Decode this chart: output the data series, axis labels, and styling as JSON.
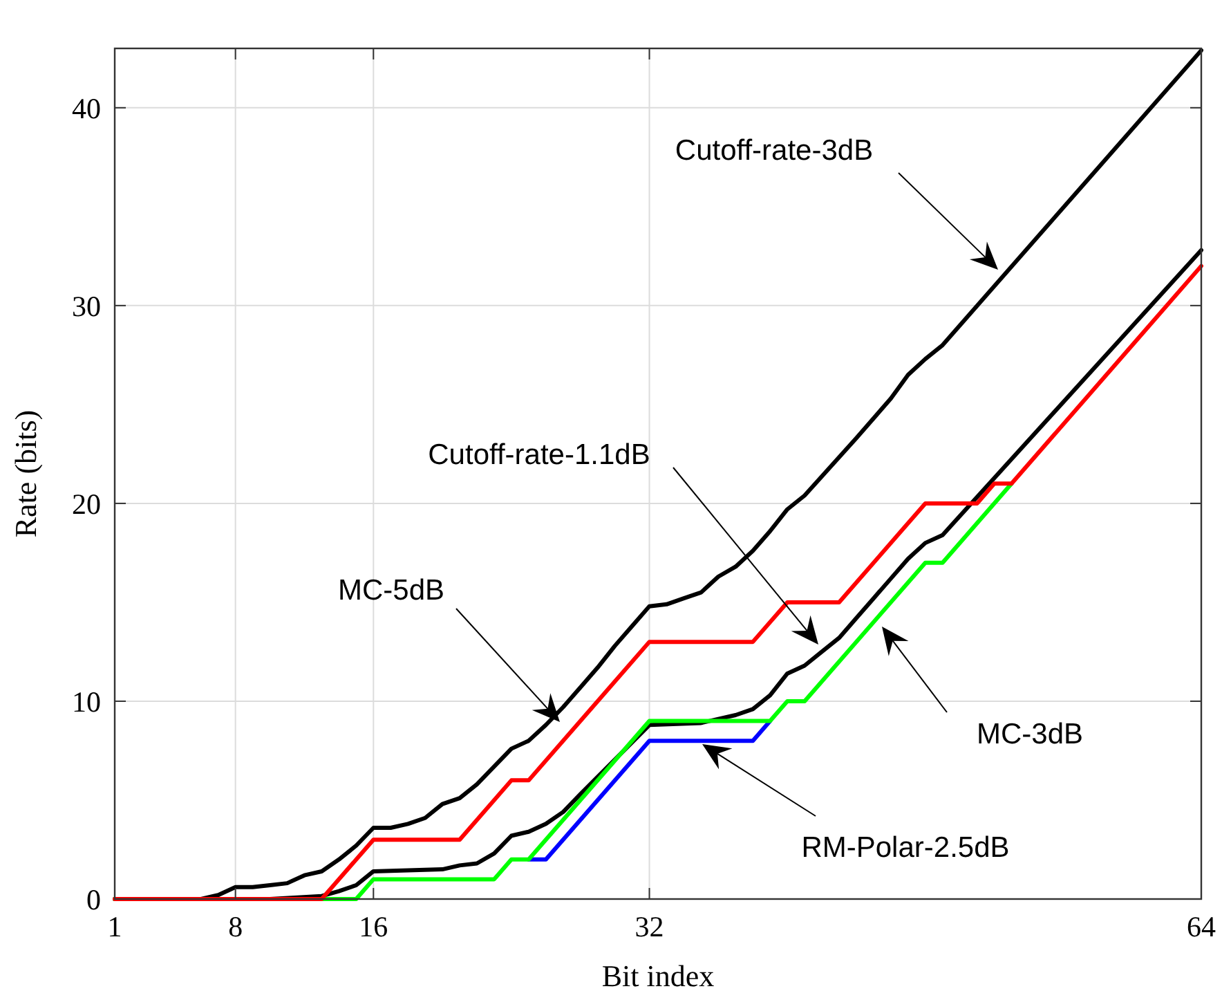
{
  "chart_data": {
    "type": "line",
    "xlabel": "Bit index",
    "ylabel": "Rate (bits)",
    "xlim": [
      1,
      64
    ],
    "ylim": [
      0,
      43
    ],
    "xticks": [
      1,
      8,
      16,
      32,
      64
    ],
    "yticks": [
      0,
      10,
      20,
      30,
      40
    ],
    "grid": true,
    "marker": "none",
    "line_style": "solid",
    "series": [
      {
        "color": "#000000",
        "x": [
          1,
          6,
          7,
          8,
          9,
          10,
          11,
          12,
          13,
          14,
          15,
          16,
          17,
          18,
          19,
          20,
          21,
          22,
          23,
          24,
          25,
          26,
          27,
          28,
          29,
          30,
          31,
          32,
          33,
          34,
          35,
          36,
          37,
          38,
          39,
          40,
          41,
          44,
          46,
          47,
          48,
          49,
          64
        ],
        "values": [
          0,
          0,
          0.2,
          0.6,
          0.6,
          0.7,
          0.8,
          1.2,
          1.4,
          2.0,
          2.7,
          3.6,
          3.6,
          3.8,
          4.1,
          4.8,
          5.1,
          5.8,
          6.7,
          7.6,
          8.0,
          8.8,
          9.7,
          10.7,
          11.7,
          12.8,
          13.8,
          14.8,
          14.9,
          15.2,
          15.5,
          16.3,
          16.8,
          17.6,
          18.6,
          19.7,
          20.4,
          23.3,
          25.3,
          26.5,
          27.3,
          28.0,
          42.9
        ]
      },
      {
        "color": "#000000",
        "x": [
          1,
          10,
          13,
          14,
          15,
          16,
          20,
          21,
          22,
          23,
          24,
          25,
          26,
          27,
          28,
          32,
          35,
          36,
          37,
          38,
          39,
          40,
          41,
          42,
          43,
          44,
          45,
          46,
          47,
          48,
          49,
          64
        ],
        "values": [
          0,
          0,
          0.15,
          0.4,
          0.7,
          1.4,
          1.5,
          1.7,
          1.8,
          2.3,
          3.2,
          3.4,
          3.8,
          4.4,
          5.3,
          8.8,
          8.9,
          9.1,
          9.3,
          9.6,
          10.3,
          11.4,
          11.8,
          12.5,
          13.2,
          14.2,
          15.2,
          16.2,
          17.2,
          18.0,
          18.4,
          32.8
        ]
      },
      {
        "color": "#0000ff",
        "x": [
          25,
          26,
          32,
          38,
          39
        ],
        "values": [
          2,
          2,
          8,
          8,
          9
        ]
      },
      {
        "color": "#00ff00",
        "x": [
          1,
          15,
          16,
          23,
          24,
          25,
          32,
          39,
          40,
          41,
          48,
          49,
          53
        ],
        "values": [
          0,
          0,
          1,
          1,
          2,
          2,
          9,
          9,
          10,
          10,
          17,
          17,
          21
        ]
      },
      {
        "color": "#ff0000",
        "x": [
          1,
          13,
          16,
          21,
          24,
          25,
          32,
          38,
          40,
          43,
          48,
          51,
          52,
          53,
          64
        ],
        "values": [
          0,
          0,
          3,
          3,
          6,
          6,
          13,
          13,
          15,
          15,
          20,
          20,
          21,
          21,
          32
        ]
      }
    ],
    "annotations": [
      "Cutoff-rate-3dB",
      "Cutoff-rate-1.1dB",
      "MC-5dB",
      "MC-3dB",
      "RM-Polar-2.5dB"
    ]
  }
}
